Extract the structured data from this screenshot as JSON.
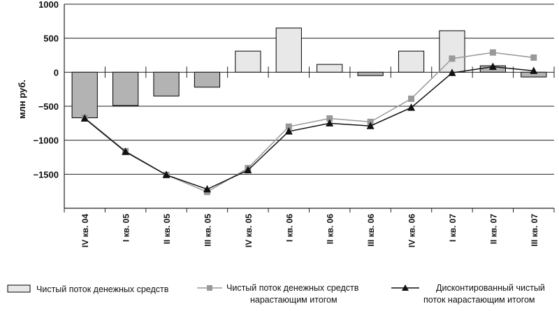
{
  "chart_data": {
    "type": "bar+line",
    "ylabel": "млн руб.",
    "ylim": [
      -2000,
      1000
    ],
    "yticks": [
      1000,
      500,
      0,
      -500,
      -1000,
      -1500
    ],
    "ytick_labels": [
      "1000",
      "500",
      "0",
      "−500",
      "−1000",
      "−1500"
    ],
    "categories": [
      "IV кв. 04",
      "I кв. 05",
      "II кв. 05",
      "III кв. 05",
      "IV кв. 05",
      "I кв. 06",
      "II кв. 06",
      "III кв. 06",
      "IV кв. 06",
      "I кв. 07",
      "II кв. 07",
      "III кв. 07"
    ],
    "series": [
      {
        "name": "Чистый поток денежных средств",
        "kind": "bar",
        "values": [
          -670,
          -490,
          -350,
          -220,
          310,
          650,
          115,
          -50,
          310,
          610,
          95,
          -70
        ],
        "colors": [
          "#b3b3b3",
          "#b3b3b3",
          "#b3b3b3",
          "#b3b3b3",
          "#e8e8e8",
          "#e8e8e8",
          "#e8e8e8",
          "#b3b3b3",
          "#e8e8e8",
          "#e8e8e8",
          "#b3b3b3",
          "#b3b3b3"
        ]
      },
      {
        "name": "Чистый поток денежных средств нарастающим итогом",
        "kind": "line-square",
        "color": "#999999",
        "values": [
          -670,
          -1160,
          -1510,
          -1760,
          -1410,
          -800,
          -680,
          -730,
          -390,
          200,
          290,
          215
        ]
      },
      {
        "name": "Дисконтированный чистый поток нарастающим итогом",
        "kind": "line-triangle",
        "color": "#111111",
        "values": [
          -680,
          -1170,
          -1510,
          -1720,
          -1440,
          -870,
          -750,
          -790,
          -520,
          -10,
          80,
          20
        ]
      }
    ],
    "legend": {
      "placement": "bottom",
      "items": [
        {
          "lines": [
            "Чистый поток денежных средств"
          ]
        },
        {
          "lines": [
            "Чистый поток денежных средств",
            "нарастающим итогом"
          ]
        },
        {
          "lines": [
            "Дисконтированный чистый",
            "поток нарастающим итогом"
          ]
        }
      ]
    },
    "grid": true
  }
}
